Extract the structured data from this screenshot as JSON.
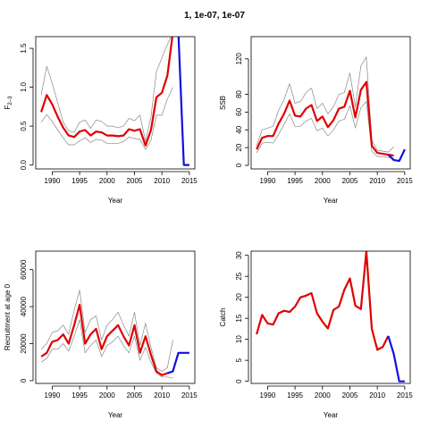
{
  "figure_title": "1, 1e-07, 1e-07",
  "colors": {
    "estimate": "#e00000",
    "projection": "#1010e0",
    "ci": "#888888"
  },
  "chart_data": [
    {
      "type": "line",
      "title": "",
      "xlabel": "Year",
      "ylabel": "F",
      "ylabel_sub": "2–3",
      "xlim": [
        1987,
        2016
      ],
      "ylim": [
        -0.05,
        1.65
      ],
      "xticks": [
        1990,
        1995,
        2000,
        2005,
        2010,
        2015
      ],
      "yticks": [
        0.0,
        0.5,
        1.0,
        1.5
      ],
      "ytick_labels": [
        "0.0",
        "0.5",
        "1.0",
        "1.5"
      ],
      "series": [
        {
          "role": "estimate",
          "x": [
            1988,
            1989,
            1990,
            1991,
            1992,
            1993,
            1994,
            1995,
            1996,
            1997,
            1998,
            1999,
            2000,
            2001,
            2002,
            2003,
            2004,
            2005,
            2006,
            2007,
            2008,
            2009,
            2010,
            2011,
            2012
          ],
          "y": [
            0.68,
            0.9,
            0.78,
            0.62,
            0.48,
            0.38,
            0.36,
            0.43,
            0.45,
            0.38,
            0.43,
            0.42,
            0.38,
            0.38,
            0.37,
            0.38,
            0.46,
            0.44,
            0.46,
            0.25,
            0.45,
            0.87,
            0.93,
            1.15,
            1.7
          ]
        },
        {
          "role": "ci_upper",
          "x": [
            1988,
            1989,
            1990,
            1991,
            1992,
            1993,
            1994,
            1995,
            1996,
            1997,
            1998,
            1999,
            2000,
            2001,
            2002,
            2003,
            2004,
            2005,
            2006,
            2007,
            2008,
            2009,
            2010,
            2011,
            2012
          ],
          "y": [
            0.9,
            1.27,
            1.05,
            0.8,
            0.55,
            0.44,
            0.42,
            0.55,
            0.58,
            0.47,
            0.58,
            0.56,
            0.5,
            0.5,
            0.48,
            0.5,
            0.6,
            0.57,
            0.64,
            0.31,
            0.62,
            1.2,
            1.38,
            1.55,
            1.7
          ]
        },
        {
          "role": "ci_lower",
          "x": [
            1988,
            1989,
            1990,
            1991,
            1992,
            1993,
            1994,
            1995,
            1996,
            1997,
            1998,
            1999,
            2000,
            2001,
            2002,
            2003,
            2004,
            2005,
            2006,
            2007,
            2008,
            2009,
            2010,
            2011,
            2012
          ],
          "y": [
            0.55,
            0.65,
            0.56,
            0.45,
            0.35,
            0.26,
            0.26,
            0.31,
            0.35,
            0.29,
            0.33,
            0.32,
            0.28,
            0.28,
            0.28,
            0.3,
            0.36,
            0.34,
            0.33,
            0.2,
            0.32,
            0.64,
            0.64,
            0.85,
            1.0
          ]
        },
        {
          "role": "projection",
          "x": [
            2013,
            2014,
            2015
          ],
          "y": [
            1.7,
            0.0,
            0.0
          ]
        }
      ]
    },
    {
      "type": "line",
      "title": "",
      "xlabel": "Year",
      "ylabel": "SSB",
      "xlim": [
        1987,
        2016
      ],
      "ylim": [
        -4,
        145
      ],
      "xticks": [
        1990,
        1995,
        2000,
        2005,
        2010,
        2015
      ],
      "yticks": [
        0,
        20,
        40,
        60,
        80,
        120
      ],
      "ytick_labels": [
        "0",
        "20",
        "40",
        "60",
        "80",
        "120"
      ],
      "series": [
        {
          "role": "estimate",
          "x": [
            1988,
            1989,
            1990,
            1991,
            1992,
            1993,
            1994,
            1995,
            1996,
            1997,
            1998,
            1999,
            2000,
            2001,
            2002,
            2003,
            2004,
            2005,
            2006,
            2007,
            2008,
            2009,
            2010,
            2011,
            2012,
            2013
          ],
          "y": [
            18,
            31,
            33,
            33,
            47,
            58,
            73,
            56,
            55,
            64,
            68,
            50,
            55,
            43,
            51,
            64,
            66,
            84,
            54,
            85,
            94,
            22,
            14,
            13,
            12,
            11
          ]
        },
        {
          "role": "ci_upper",
          "x": [
            1988,
            1989,
            1990,
            1991,
            1992,
            1993,
            1994,
            1995,
            1996,
            1997,
            1998,
            1999,
            2000,
            2001,
            2002,
            2003,
            2004,
            2005,
            2006,
            2007,
            2008,
            2009,
            2010,
            2011,
            2012,
            2013
          ],
          "y": [
            22,
            40,
            42,
            44,
            62,
            74,
            92,
            70,
            72,
            82,
            87,
            64,
            70,
            58,
            66,
            80,
            82,
            104,
            66,
            112,
            122,
            28,
            17,
            16,
            15,
            21
          ]
        },
        {
          "role": "ci_lower",
          "x": [
            1988,
            1989,
            1990,
            1991,
            1992,
            1993,
            1994,
            1995,
            1996,
            1997,
            1998,
            1999,
            2000,
            2001,
            2002,
            2003,
            2004,
            2005,
            2006,
            2007,
            2008,
            2009,
            2010,
            2011,
            2012,
            2013
          ],
          "y": [
            14,
            25,
            26,
            25,
            35,
            46,
            58,
            44,
            44,
            50,
            53,
            39,
            42,
            33,
            40,
            50,
            52,
            67,
            42,
            65,
            72,
            16,
            10,
            10,
            9,
            8
          ]
        },
        {
          "role": "projection",
          "x": [
            2012,
            2013,
            2014,
            2015
          ],
          "y": [
            12,
            6,
            5,
            18
          ]
        }
      ]
    },
    {
      "type": "line",
      "title": "",
      "xlabel": "Year",
      "ylabel": "Recruitment at age 0",
      "xlim": [
        1987,
        2016
      ],
      "ylim": [
        -1500,
        70000
      ],
      "xticks": [
        1990,
        1995,
        2000,
        2005,
        2010,
        2015
      ],
      "yticks": [
        0,
        20000,
        40000,
        60000
      ],
      "ytick_labels": [
        "0",
        "20000",
        "40000",
        "60000"
      ],
      "series": [
        {
          "role": "estimate",
          "x": [
            1988,
            1989,
            1990,
            1991,
            1992,
            1993,
            1994,
            1995,
            1996,
            1997,
            1998,
            1999,
            2000,
            2001,
            2002,
            2003,
            2004,
            2005,
            2006,
            2007,
            2008,
            2009,
            2010,
            2011
          ],
          "y": [
            13000,
            15000,
            21000,
            22000,
            25000,
            20000,
            30000,
            41000,
            20000,
            25000,
            28000,
            17000,
            24000,
            27000,
            30000,
            24000,
            19000,
            30000,
            15000,
            24000,
            14000,
            5000,
            3000,
            4000
          ]
        },
        {
          "role": "ci_upper",
          "x": [
            1988,
            1989,
            1990,
            1991,
            1992,
            1993,
            1994,
            1995,
            1996,
            1997,
            1998,
            1999,
            2000,
            2001,
            2002,
            2003,
            2004,
            2005,
            2006,
            2007,
            2008,
            2009,
            2010,
            2011,
            2012
          ],
          "y": [
            17000,
            20000,
            26000,
            27000,
            30000,
            25000,
            38000,
            49000,
            26000,
            33000,
            35000,
            22000,
            30000,
            33000,
            37000,
            30000,
            24000,
            37000,
            19000,
            31000,
            18000,
            7000,
            5000,
            7000,
            22000
          ]
        },
        {
          "role": "ci_lower",
          "x": [
            1988,
            1989,
            1990,
            1991,
            1992,
            1993,
            1994,
            1995,
            1996,
            1997,
            1998,
            1999,
            2000,
            2001,
            2002,
            2003,
            2004,
            2005,
            2006,
            2007,
            2008,
            2009,
            2010,
            2011,
            2012
          ],
          "y": [
            10000,
            12000,
            17000,
            17000,
            20000,
            16000,
            24000,
            33000,
            15000,
            19000,
            22000,
            13000,
            19000,
            21000,
            24000,
            19000,
            15000,
            24000,
            11000,
            18000,
            10000,
            4000,
            2000,
            2000,
            1500
          ]
        },
        {
          "role": "projection",
          "x": [
            2011,
            2012,
            2013,
            2014,
            2015
          ],
          "y": [
            4000,
            5000,
            15000,
            15000,
            15000
          ]
        }
      ]
    },
    {
      "type": "line",
      "title": "",
      "xlabel": "Year",
      "ylabel": "Catch",
      "xlim": [
        1987,
        2016
      ],
      "ylim": [
        -0.5,
        31
      ],
      "xticks": [
        1990,
        1995,
        2000,
        2005,
        2010,
        2015
      ],
      "yticks": [
        0,
        5,
        10,
        15,
        20,
        25,
        30
      ],
      "ytick_labels": [
        "0",
        "5",
        "10",
        "15",
        "20",
        "25",
        "30"
      ],
      "series": [
        {
          "role": "estimate",
          "x": [
            1988,
            1989,
            1990,
            1991,
            1992,
            1993,
            1994,
            1995,
            1996,
            1997,
            1998,
            1999,
            2000,
            2001,
            2002,
            2003,
            2004,
            2005,
            2006,
            2007,
            2008,
            2009,
            2010,
            2011,
            2012
          ],
          "y": [
            11.2,
            15.8,
            13.8,
            13.5,
            16.2,
            16.8,
            16.5,
            17.8,
            20.0,
            20.4,
            21.0,
            16.2,
            14.2,
            12.6,
            17.0,
            17.8,
            21.8,
            24.5,
            18.0,
            17.2,
            31.0,
            12.5,
            7.5,
            8.2,
            10.8
          ]
        },
        {
          "role": "projection",
          "x": [
            2012,
            2013,
            2014,
            2015
          ],
          "y": [
            10.8,
            6.5,
            0.0,
            0.0
          ]
        }
      ]
    }
  ]
}
